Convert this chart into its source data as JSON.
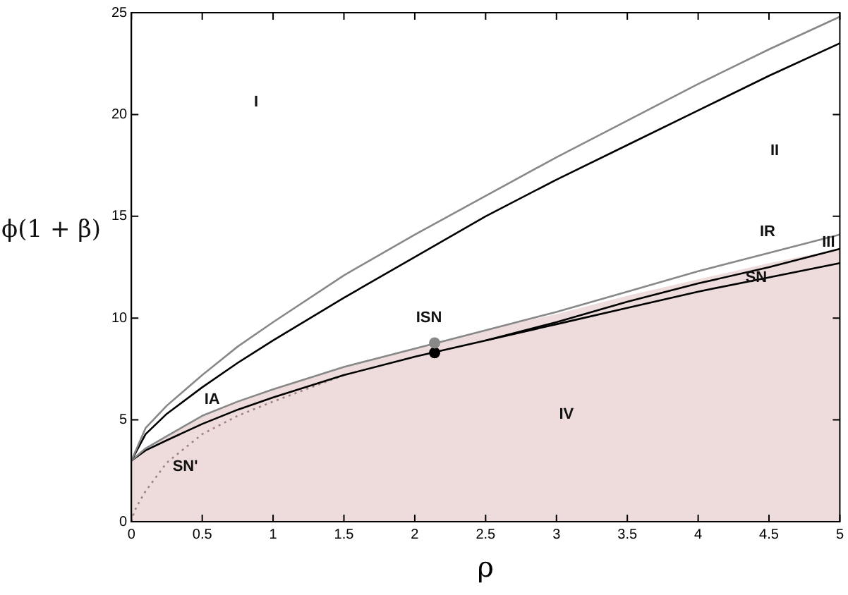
{
  "chart_data": {
    "type": "line",
    "xlabel": "ρ",
    "ylabel": "ϕ(1 + β)",
    "x": [
      0,
      0.1,
      0.25,
      0.5,
      0.75,
      1,
      1.5,
      2,
      2.5,
      3,
      3.5,
      4,
      4.5,
      5
    ],
    "series": [
      {
        "type": "area",
        "color": "#eedcdc",
        "values": [
          3,
          3.6,
          4.2,
          5.2,
          5.9,
          6.5,
          7.6,
          8.5,
          9.4,
          10.2,
          11.1,
          11.9,
          12.7,
          13.4
        ]
      },
      {
        "color": "#888888",
        "values": [
          3,
          4.6,
          5.7,
          7.2,
          8.6,
          9.8,
          12.1,
          14.1,
          16.0,
          17.9,
          19.7,
          21.5,
          23.2,
          24.8
        ]
      },
      {
        "color": "#000000",
        "values": [
          3,
          4.3,
          5.3,
          6.6,
          7.8,
          8.9,
          11.0,
          13.0,
          15.0,
          16.8,
          18.5,
          20.2,
          21.9,
          23.5
        ]
      },
      {
        "color": "#888888",
        "values": [
          3,
          3.6,
          4.2,
          5.2,
          5.9,
          6.5,
          7.6,
          8.5,
          9.4,
          10.3,
          11.3,
          12.3,
          13.2,
          14.1
        ]
      },
      {
        "color": "#000000",
        "values": [
          null,
          null,
          null,
          null,
          null,
          null,
          null,
          null,
          8.9,
          9.8,
          10.8,
          11.7,
          12.5,
          13.4
        ]
      },
      {
        "color": "#000000",
        "values": [
          3,
          3.5,
          4.0,
          4.8,
          5.5,
          6.1,
          7.2,
          8.1,
          8.9,
          9.7,
          10.5,
          11.3,
          12.0,
          12.7
        ]
      },
      {
        "color": "#a08080",
        "line_style": "dotted",
        "x": [
          0,
          0.02,
          0.05,
          0.1,
          0.25,
          0.5,
          0.75,
          1,
          1.5
        ],
        "values": [
          0,
          0.5,
          0.9,
          1.5,
          2.9,
          4.3,
          5.2,
          5.9,
          7.2
        ]
      },
      {
        "type": "scatter",
        "marker": "circle",
        "color": "#888888",
        "x": [
          2.14
        ],
        "values": [
          8.78
        ]
      },
      {
        "type": "scatter",
        "marker": "circle",
        "color": "#000000",
        "x": [
          2.14
        ],
        "values": [
          8.3
        ]
      }
    ],
    "xlim": [
      0,
      5
    ],
    "xticks": [
      0,
      0.5,
      1,
      1.5,
      2,
      2.5,
      3,
      3.5,
      4,
      4.5,
      5
    ],
    "ylim": [
      0,
      25
    ],
    "yticks": [
      0,
      5,
      10,
      15,
      20,
      25
    ],
    "grid": false,
    "legend": false,
    "line_style": "solid",
    "marker": "none",
    "annotations": [
      "I",
      "II",
      "IR",
      "III",
      "SN",
      "ISN",
      "IA",
      "IV",
      "SN'"
    ]
  }
}
